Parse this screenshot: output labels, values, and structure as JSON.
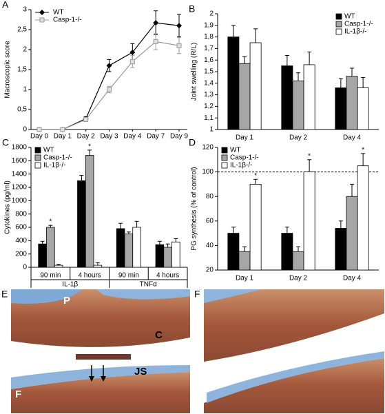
{
  "chart_data": [
    {
      "type": "line",
      "panel": "A",
      "ylabel": "Macroscopic score",
      "categories": [
        "Day 0",
        "Day 1",
        "Day 2",
        "Day 3",
        "Day 4",
        "Day 7",
        "Day 9"
      ],
      "series": [
        {
          "name": "WT",
          "color": "#000000",
          "marker": "diamond",
          "values": [
            0,
            0,
            0.27,
            1.6,
            1.93,
            2.67,
            2.6
          ],
          "errors": [
            0,
            0,
            0.05,
            0.15,
            0.22,
            0.3,
            0.28
          ]
        },
        {
          "name": "Casp-1-/-",
          "color": "#999999",
          "marker": "square",
          "values": [
            0,
            0,
            0.25,
            1.0,
            1.7,
            2.2,
            2.1
          ],
          "errors": [
            0,
            0,
            0.05,
            0.08,
            0.15,
            0.2,
            0.2
          ]
        }
      ],
      "ylim": [
        0,
        3
      ],
      "yticks": [
        0,
        {
          "value": 0.5,
          "label": "0,5"
        },
        1,
        {
          "value": 1.5,
          "label": "1,5"
        },
        2,
        {
          "value": 2.5,
          "label": "2,5"
        },
        3
      ],
      "legend": "upper left"
    },
    {
      "type": "bar",
      "panel": "B",
      "ylabel": "Joint swelling (R/L)",
      "categories": [
        "Day 1",
        "Day 2",
        "Day 4"
      ],
      "series": [
        {
          "name": "WT",
          "color": "#000000",
          "values": [
            1.8,
            1.55,
            1.36
          ],
          "errors": [
            0.1,
            0.09,
            0.08
          ]
        },
        {
          "name": "Casp-1-/-",
          "color": "#a6a6a6",
          "values": [
            1.57,
            1.42,
            1.46
          ],
          "errors": [
            0.06,
            0.07,
            0.07
          ]
        },
        {
          "name": "IL-1β-/-",
          "color": "#ffffff",
          "values": [
            1.75,
            1.56,
            1.36
          ],
          "errors": [
            0.12,
            0.11,
            0.09
          ]
        }
      ],
      "ylim": [
        1,
        2
      ],
      "yticks": [
        1,
        {
          "value": 1.1,
          "label": "1,1"
        },
        {
          "value": 1.2,
          "label": "1,2"
        },
        {
          "value": 1.3,
          "label": "1,3"
        },
        {
          "value": 1.4,
          "label": "1,4"
        },
        {
          "value": 1.5,
          "label": "1,5"
        },
        {
          "value": 1.6,
          "label": "1,6"
        },
        {
          "value": 1.7,
          "label": "1,7"
        },
        {
          "value": 1.8,
          "label": "1,8"
        },
        {
          "value": 1.9,
          "label": "1,9"
        },
        2
      ],
      "legend": "upper right"
    },
    {
      "type": "bar",
      "panel": "C",
      "ylabel": "Cytokines (pg/ml)",
      "categories": [
        "90 min",
        "4 hours",
        "90 min",
        "4 hours"
      ],
      "groups": [
        "IL-1β",
        "TNFα"
      ],
      "group_size": 2,
      "series": [
        {
          "name": "WT",
          "color": "#000000",
          "values": [
            350,
            1300,
            580,
            340
          ],
          "errors": [
            40,
            80,
            80,
            50
          ]
        },
        {
          "name": "Casp-1-/-",
          "color": "#a6a6a6",
          "values": [
            600,
            1680,
            500,
            300
          ],
          "errors": [
            30,
            80,
            30,
            50
          ],
          "sig": [
            0,
            1
          ]
        },
        {
          "name": "IL-1β-/-",
          "color": "#ffffff",
          "values": [
            30,
            30,
            600,
            380
          ],
          "errors": [
            15,
            40,
            90,
            50
          ]
        }
      ],
      "sig_label": "*",
      "ylim": [
        0,
        1800
      ],
      "yticks": [
        0,
        200,
        400,
        600,
        800,
        1000,
        1200,
        1400,
        1600,
        1800
      ],
      "legend": "upper left"
    },
    {
      "type": "bar",
      "panel": "D",
      "ylabel": "PG synthesis (% of control)",
      "categories": [
        "Day 1",
        "Day 2",
        "Day 4"
      ],
      "series": [
        {
          "name": "WT",
          "color": "#000000",
          "values": [
            50,
            50,
            54
          ],
          "errors": [
            5,
            5,
            6
          ]
        },
        {
          "name": "Casp-1-/-",
          "color": "#a6a6a6",
          "values": [
            35,
            35,
            80
          ],
          "errors": [
            4,
            4,
            10
          ]
        },
        {
          "name": "IL-1β-/-",
          "color": "#ffffff",
          "values": [
            90,
            100,
            105
          ],
          "errors": [
            4,
            10,
            10
          ],
          "sig": [
            0,
            1,
            2
          ]
        }
      ],
      "sig_label": "*",
      "reference_line": 100,
      "ylim": [
        20,
        120
      ],
      "yticks": [
        20,
        40,
        60,
        80,
        100,
        120
      ],
      "legend": "upper left"
    }
  ],
  "images": [
    {
      "label": "E",
      "annotations": [
        "P",
        "C",
        "JS",
        "F"
      ]
    },
    {
      "label": "F"
    }
  ]
}
